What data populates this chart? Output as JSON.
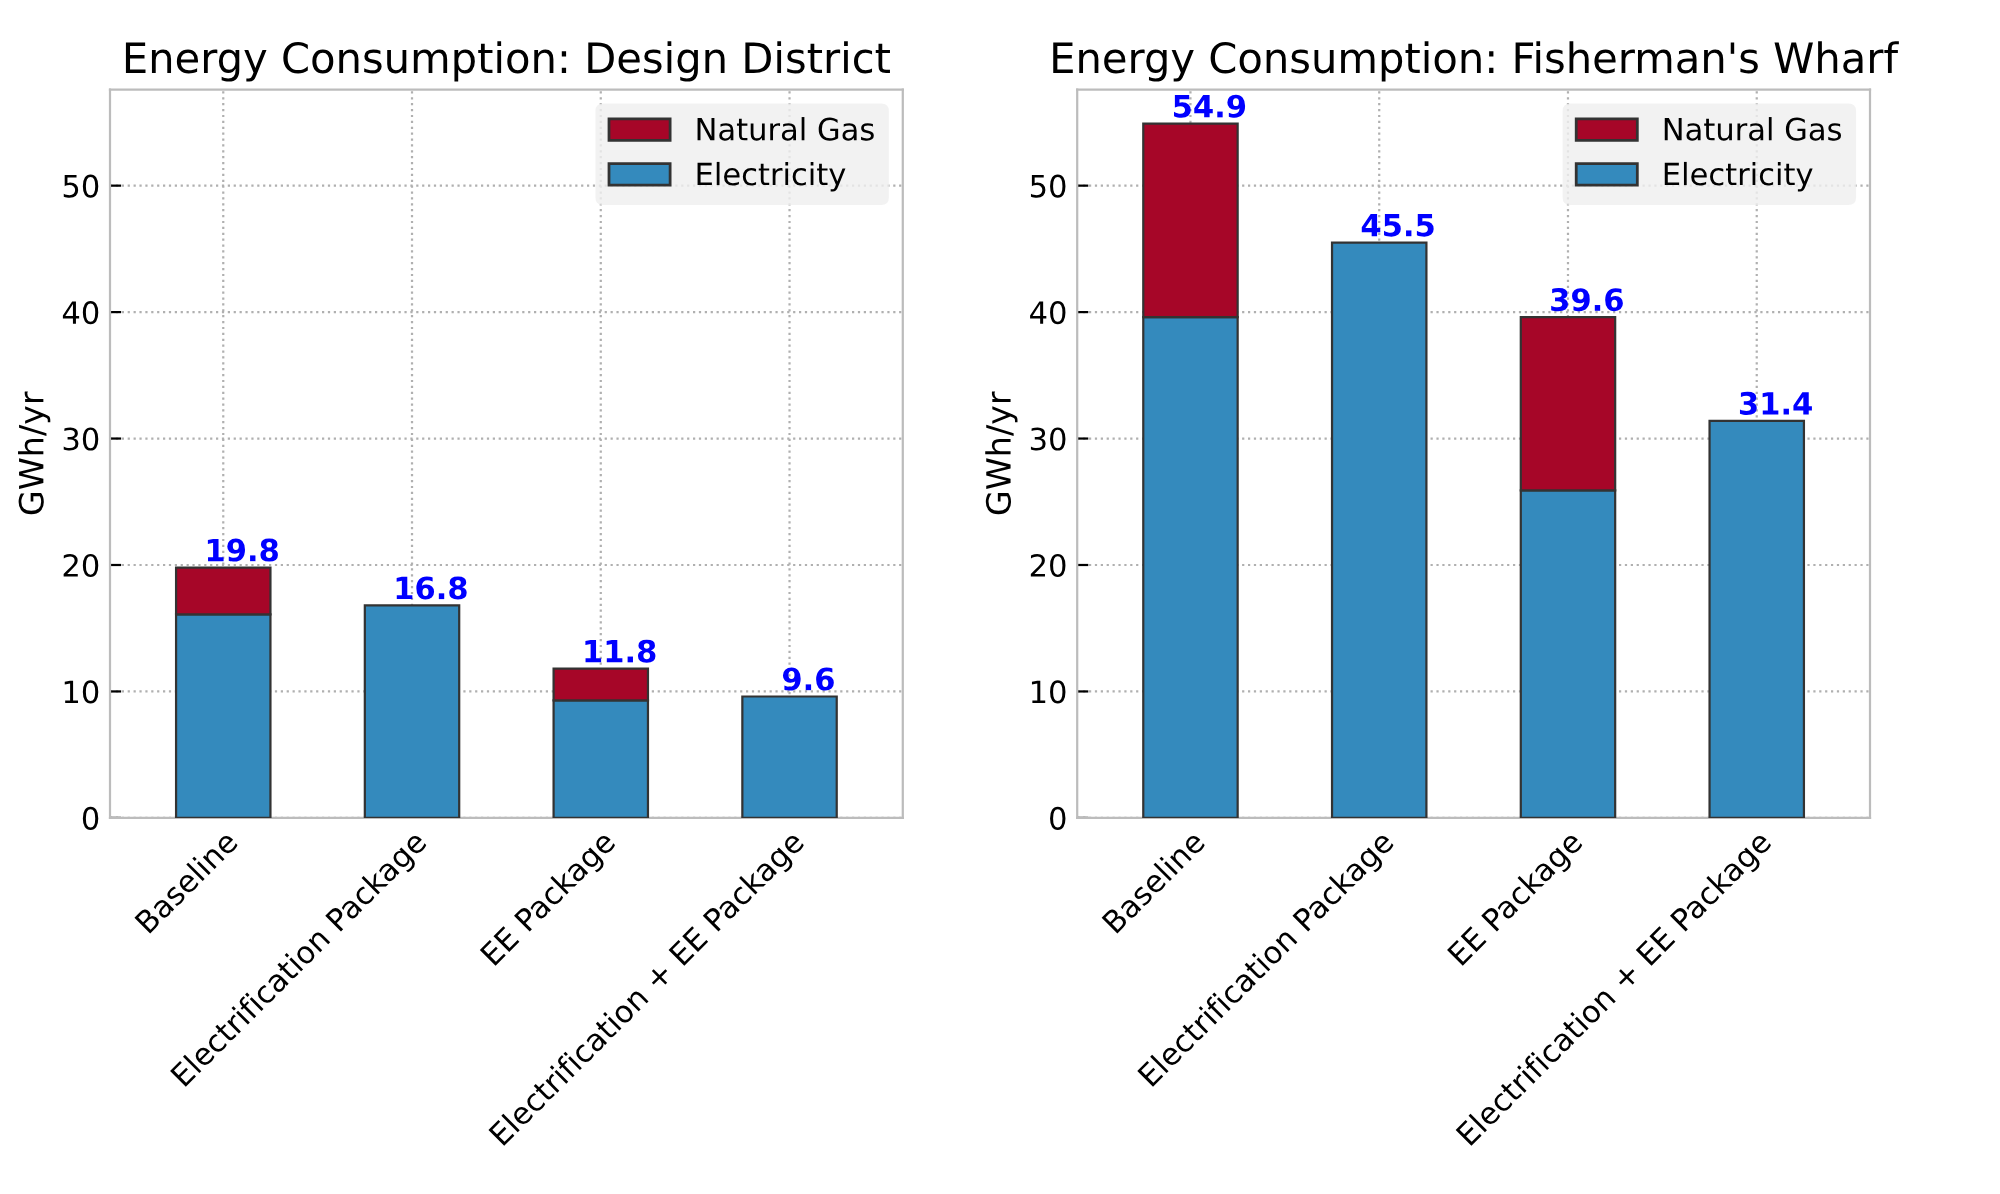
{
  "chart_data": [
    {
      "type": "bar",
      "title": "Energy Consumption: Design District",
      "ylabel": "GWh/yr",
      "categories": [
        "Baseline",
        "Electrification Package",
        "EE Package",
        "Electrification + EE Package"
      ],
      "stacked": true,
      "series": [
        {
          "name": "Electricity",
          "color": "#348abd",
          "values": [
            16.1,
            16.8,
            9.3,
            9.6
          ]
        },
        {
          "name": "Natural Gas",
          "color": "#a60628",
          "values": [
            3.7,
            null,
            2.5,
            null
          ]
        }
      ],
      "totals": [
        "19.8",
        "16.8",
        "11.8",
        "9.6"
      ],
      "ylim": [
        0,
        57.6
      ],
      "yticks": [
        0,
        10,
        20,
        30,
        40,
        50
      ],
      "grid": true,
      "legend": "top right"
    },
    {
      "type": "bar",
      "title": "Energy Consumption: Fisherman's Wharf",
      "ylabel": "GWh/yr",
      "categories": [
        "Baseline",
        "Electrification Package",
        "EE Package",
        "Electrification + EE Package"
      ],
      "stacked": true,
      "series": [
        {
          "name": "Electricity",
          "color": "#348abd",
          "values": [
            39.6,
            45.5,
            25.9,
            31.4
          ]
        },
        {
          "name": "Natural Gas",
          "color": "#a60628",
          "values": [
            15.3,
            null,
            13.7,
            null
          ]
        }
      ],
      "totals": [
        "54.9",
        "45.5",
        "39.6",
        "31.4"
      ],
      "ylim": [
        0,
        57.6
      ],
      "yticks": [
        0,
        10,
        20,
        30,
        40,
        50
      ],
      "grid": true,
      "legend": "top right"
    }
  ]
}
